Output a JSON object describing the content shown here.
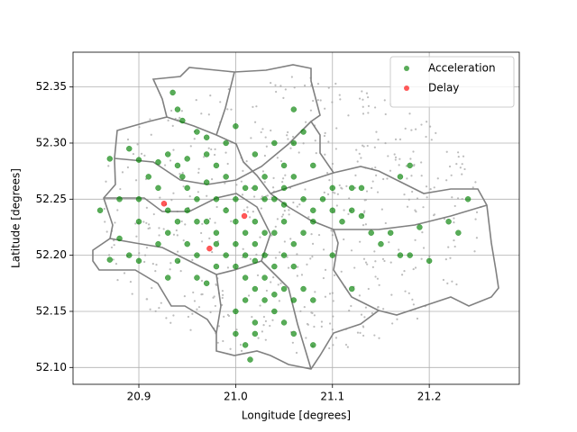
{
  "chart_data": {
    "type": "scatter",
    "x_label": "Longitude [degrees]",
    "y_label": "Latitude [degrees]",
    "xlim": [
      20.832,
      21.293
    ],
    "ylim": [
      52.085,
      52.381
    ],
    "xticks": [
      20.9,
      {
        "value": 21.0,
        "label": "21.0"
      },
      21.1,
      21.2
    ],
    "yticks": [
      {
        "value": 52.1,
        "label": "52.10"
      },
      52.15,
      {
        "value": 52.2,
        "label": "52.20"
      },
      52.25,
      {
        "value": 52.3,
        "label": "52.30"
      },
      52.35
    ],
    "grid": true,
    "legend": "upper-right",
    "series": [
      {
        "name": "Acceleration",
        "color": "#008000",
        "x": [
          20.87,
          20.89,
          20.9,
          20.92,
          20.93,
          20.94,
          20.95,
          20.97,
          20.94,
          20.945,
          20.935,
          20.96,
          20.97,
          20.98,
          20.99,
          21.0,
          20.99,
          21.02,
          21.04,
          21.05,
          21.06,
          21.05,
          21.04,
          21.03,
          21.03,
          21.06,
          21.07,
          21.06,
          21.08,
          21.07,
          21.08,
          21.09,
          21.1,
          21.11,
          21.12,
          21.13,
          21.14,
          21.15,
          21.16,
          21.17,
          21.2,
          21.23,
          21.24,
          21.22,
          21.18,
          21.17,
          21.12,
          21.1,
          20.9,
          20.9,
          20.88,
          20.89,
          20.87,
          20.9,
          20.92,
          20.93,
          20.94,
          20.95,
          20.96,
          20.97,
          20.98,
          20.99,
          21.0,
          21.01,
          21.02,
          21.02,
          21.03,
          21.04,
          21.05,
          21.06,
          21.04,
          21.05,
          21.06,
          20.95,
          20.96,
          20.94,
          20.93,
          20.96,
          20.97,
          20.98,
          20.99,
          21.0,
          21.01,
          21.02,
          21.03,
          21.04,
          21.05,
          21.06,
          21.08,
          21.07,
          21.08,
          21.06,
          21.05,
          21.03,
          21.01,
          21.0,
          21.02,
          21.0,
          21.01,
          21.015,
          21.02,
          21.04,
          20.93,
          20.92,
          20.91,
          20.95,
          20.97,
          20.98,
          21.0,
          21.01,
          21.02,
          20.96,
          20.98,
          21.0,
          21.01,
          21.02,
          21.03,
          21.05,
          21.07,
          21.08,
          21.13,
          21.18,
          21.19,
          21.12,
          21.1,
          20.86,
          20.88,
          20.945
        ],
        "values": [
          52.286,
          52.295,
          52.285,
          52.283,
          52.29,
          52.28,
          52.286,
          52.29,
          52.33,
          52.32,
          52.345,
          52.31,
          52.305,
          52.28,
          52.27,
          52.315,
          52.3,
          52.29,
          52.3,
          52.28,
          52.27,
          52.26,
          52.25,
          52.27,
          52.25,
          52.3,
          52.31,
          52.33,
          52.28,
          52.25,
          52.24,
          52.25,
          52.24,
          52.23,
          52.24,
          52.235,
          52.22,
          52.21,
          52.22,
          52.2,
          52.195,
          52.22,
          52.25,
          52.23,
          52.28,
          52.27,
          52.26,
          52.26,
          52.25,
          52.23,
          52.215,
          52.2,
          52.196,
          52.195,
          52.21,
          52.22,
          52.23,
          52.24,
          52.25,
          52.23,
          52.22,
          52.24,
          52.23,
          52.22,
          52.21,
          52.23,
          52.2,
          52.19,
          52.2,
          52.19,
          52.22,
          52.23,
          52.21,
          52.21,
          52.2,
          52.195,
          52.18,
          52.18,
          52.175,
          52.19,
          52.2,
          52.19,
          52.18,
          52.17,
          52.16,
          52.15,
          52.14,
          52.13,
          52.12,
          52.17,
          52.16,
          52.16,
          52.17,
          52.18,
          52.16,
          52.15,
          52.14,
          52.13,
          52.12,
          52.107,
          52.13,
          52.165,
          52.24,
          52.26,
          52.27,
          52.26,
          52.265,
          52.25,
          52.25,
          52.26,
          52.26,
          52.23,
          52.21,
          52.21,
          52.2,
          52.195,
          52.22,
          52.245,
          52.22,
          52.23,
          52.26,
          52.2,
          52.225,
          52.17,
          52.2,
          52.24,
          52.25,
          52.27
        ]
      },
      {
        "name": "Delay",
        "color": "#ff0000",
        "x": [
          20.973,
          21.009,
          20.926
        ],
        "values": [
          52.206,
          52.235,
          52.246
        ]
      }
    ]
  }
}
